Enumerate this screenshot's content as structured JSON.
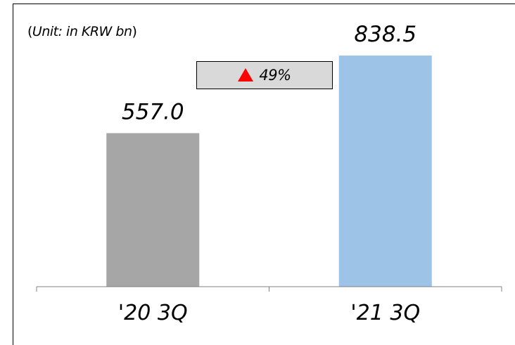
{
  "unit_label": {
    "open": "(",
    "text": "Unit: in KRW bn",
    "close": ")"
  },
  "growth": {
    "icon": "up-triangle-icon",
    "text": "49%",
    "color": "#ff0000"
  },
  "chart_data": {
    "type": "bar",
    "categories": [
      "'20 3Q",
      "'21 3Q"
    ],
    "values": [
      557.0,
      838.5
    ],
    "value_labels": [
      "557.0",
      "838.5"
    ],
    "colors": [
      "#a6a6a6",
      "#9dc3e6"
    ],
    "title": "",
    "xlabel": "",
    "ylabel": "",
    "ylim": [
      0,
      1040
    ],
    "grid": false,
    "legend": "none"
  }
}
